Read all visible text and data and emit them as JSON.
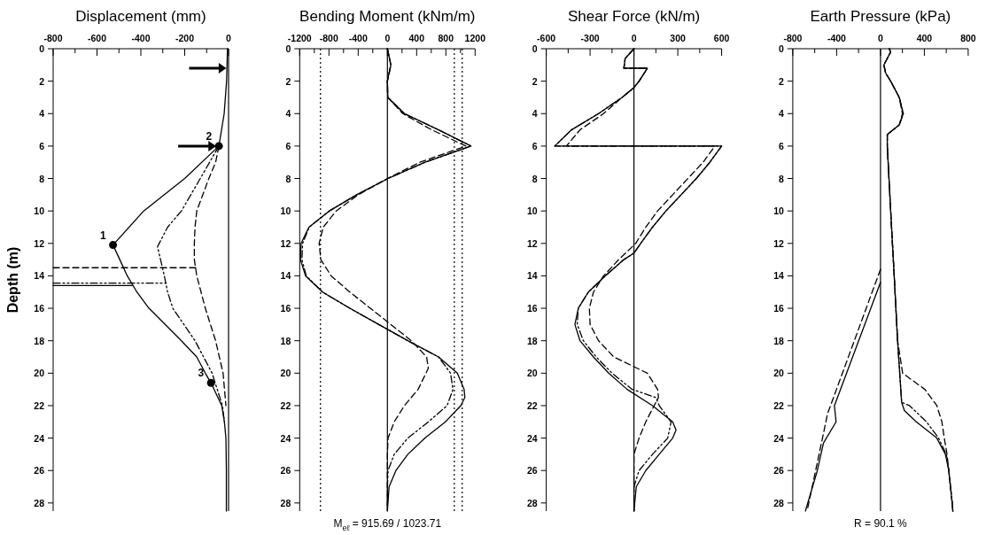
{
  "chart_data": [
    {
      "type": "line",
      "title": "Displacement (mm)",
      "ylabel": "Depth (m)",
      "xlim": [
        -800,
        0
      ],
      "xticks": [
        -800,
        {
          "value": -700,
          "label": null
        },
        -600,
        {
          "value": -500,
          "label": null
        },
        -400,
        {
          "value": -300,
          "label": null
        },
        -200,
        {
          "value": -100,
          "label": null
        },
        0
      ],
      "ylim": [
        28.5,
        0
      ],
      "yticks": [
        0,
        2,
        4,
        6,
        8,
        10,
        12,
        14,
        16,
        18,
        20,
        22,
        24,
        26,
        28
      ],
      "ref_lines": [
        {
          "axis": "x",
          "value": 0,
          "line_style": "solid",
          "color": "#000000"
        }
      ],
      "annotations": [
        {
          "text": "1",
          "x": -527,
          "y": 12.1
        },
        {
          "text": "2",
          "x": -44,
          "y": 6
        },
        {
          "text": "3",
          "x": -80,
          "y": 20.6
        }
      ],
      "series": [
        {
          "type": "line",
          "line_style": "solid",
          "color": "#000000",
          "x": [
            -5,
            -9,
            -20,
            -44,
            -200,
            -387,
            -527,
            -496,
            -462,
            -418,
            -363,
            -215,
            -145,
            -106,
            -80,
            -31,
            -19,
            -12,
            -10,
            -10
          ],
          "values": [
            0,
            2,
            4,
            6,
            8,
            10,
            12.1,
            13,
            14,
            15,
            16,
            18,
            19,
            20,
            20.6,
            22,
            23,
            24,
            26,
            28.5
          ]
        },
        {
          "type": "line",
          "line_style": "dashdot",
          "color": "#000000",
          "x": [
            -44,
            -129,
            -215,
            -278,
            -324,
            -293,
            -278,
            -254,
            -153,
            -75,
            -28,
            -19
          ],
          "values": [
            6,
            8,
            10,
            11,
            12.2,
            14,
            15,
            16,
            18,
            20,
            22,
            23
          ]
        },
        {
          "type": "line",
          "line_style": "dashed",
          "color": "#000000",
          "x": [
            -44,
            -59,
            -90,
            -145,
            -153,
            -156,
            -156,
            -145,
            -106,
            -59,
            -25,
            -12
          ],
          "values": [
            6,
            7,
            8,
            10,
            11,
            12,
            13,
            14,
            16,
            18,
            20,
            22
          ]
        },
        {
          "type": "line",
          "line_style": "dashed",
          "color": "#000000",
          "x": [
            -800,
            -150
          ],
          "values": [
            13.5,
            13.5
          ]
        },
        {
          "type": "line",
          "line_style": "solid",
          "color": "#000000",
          "x": [
            -800,
            -440
          ],
          "values": [
            14.6,
            14.6
          ]
        },
        {
          "type": "line",
          "line_style": "dashdot",
          "color": "#000000",
          "x": [
            -800,
            -285
          ],
          "values": [
            14.45,
            14.45
          ]
        },
        {
          "type": "scatter",
          "marker": "circle",
          "color": "#000000",
          "x": [
            -527,
            -44,
            -80
          ],
          "values": [
            12.1,
            6,
            20.6
          ]
        }
      ]
    },
    {
      "type": "line",
      "title": "Bending Moment (kNm/m)",
      "xlim": [
        -1200,
        1200
      ],
      "xticks": [
        -1200,
        {
          "value": -1000,
          "label": null
        },
        -800,
        {
          "value": -600,
          "label": null
        },
        -400,
        {
          "value": -200,
          "label": null
        },
        0,
        {
          "value": 200,
          "label": null
        },
        400,
        {
          "value": 600,
          "label": null
        },
        800,
        {
          "value": 1000,
          "label": null
        },
        1200
      ],
      "ylim": [
        28.5,
        0
      ],
      "yticks": [
        0,
        2,
        4,
        6,
        8,
        10,
        12,
        14,
        16,
        18,
        20,
        22,
        24,
        26,
        28
      ],
      "ref_lines": [
        {
          "axis": "x",
          "value": 0,
          "line_style": "solid",
          "color": "#000000"
        },
        {
          "axis": "x",
          "value": -915.69,
          "line_style": "dotted",
          "color": "#000000"
        },
        {
          "axis": "x",
          "value": 915.69,
          "line_style": "dotted",
          "color": "#000000"
        },
        {
          "axis": "x",
          "value": 1023.71,
          "line_style": "dotted",
          "color": "#000000"
        }
      ],
      "annotations": [
        "M$_{eℓ}$ = 915.69 / 1023.71"
      ],
      "series": [
        {
          "type": "line",
          "line_style": "solid",
          "color": "#000000",
          "x": [
            0,
            47,
            0,
            5,
            233,
            700,
            1144,
            514,
            9,
            -420,
            -794,
            -1074,
            -1181,
            -1190,
            -1120,
            -887,
            -514,
            -117,
            280,
            700,
            957,
            1050,
            1060,
            1004,
            794,
            514,
            280,
            117,
            23,
            0
          ],
          "values": [
            0,
            1,
            2,
            3,
            4,
            5,
            6,
            7,
            8,
            9,
            10,
            11,
            12,
            13,
            14,
            15,
            16,
            17,
            18,
            19,
            20,
            21,
            21.5,
            22,
            23,
            24,
            25,
            26,
            27,
            28.5
          ]
        },
        {
          "type": "line",
          "line_style": "dashdot",
          "color": "#000000",
          "x": [
            0,
            47,
            0,
            5,
            233,
            700,
            1144,
            514,
            9,
            -420,
            -794,
            -1070,
            -1160,
            -1170,
            -1110,
            -887,
            -514,
            -117,
            280,
            700,
            864,
            897,
            817,
            560,
            280,
            93,
            9,
            0,
            0
          ],
          "values": [
            0,
            1,
            2,
            3,
            4,
            5,
            6,
            7,
            8,
            9,
            10,
            11,
            12,
            13,
            14,
            15,
            16,
            17,
            18,
            19,
            20,
            21,
            22,
            23,
            24,
            25,
            26,
            27,
            28.5
          ]
        },
        {
          "type": "line",
          "line_style": "dashed",
          "color": "#000000",
          "x": [
            0,
            47,
            0,
            5,
            210,
            607,
            1074,
            444,
            0,
            -397,
            -700,
            -878,
            -934,
            -911,
            -770,
            -514,
            -233,
            47,
            327,
            537,
            560,
            420,
            233,
            93,
            9,
            0,
            0
          ],
          "values": [
            0,
            1,
            2,
            3,
            4,
            5,
            6,
            7,
            8,
            9,
            10,
            11,
            12,
            13,
            14,
            15,
            16,
            17,
            18,
            19,
            19.7,
            21,
            22,
            23,
            24,
            25,
            28.5
          ]
        }
      ]
    },
    {
      "type": "line",
      "title": "Shear Force (kN/m)",
      "xlim": [
        -600,
        600
      ],
      "xticks": [
        -600,
        {
          "value": -450,
          "label": null
        },
        -300,
        {
          "value": -150,
          "label": null
        },
        0,
        {
          "value": 150,
          "label": null
        },
        300,
        {
          "value": 450,
          "label": null
        },
        600
      ],
      "ylim": [
        28.5,
        0
      ],
      "yticks": [
        0,
        2,
        4,
        6,
        8,
        10,
        12,
        14,
        16,
        18,
        20,
        22,
        24,
        26,
        28
      ],
      "ref_lines": [
        {
          "axis": "x",
          "value": 0,
          "line_style": "solid",
          "color": "#000000"
        }
      ],
      "series": [
        {
          "type": "line",
          "line_style": "solid",
          "color": "#000000",
          "x": [
            0,
            -60,
            -69,
            92,
            35,
            0,
            -81,
            -242,
            -427,
            -542,
            600,
            519,
            427,
            323,
            219,
            127,
            46,
            0,
            -69,
            -196,
            -312,
            -381,
            -404,
            -369,
            -277,
            -173,
            -46,
            127,
            265,
            288,
            265,
            173,
            81,
            16,
            0
          ],
          "values": [
            0,
            0.6,
            1.2,
            1.2,
            2,
            2.4,
            3,
            4,
            5,
            6,
            6,
            7,
            8,
            9,
            10,
            11,
            12,
            12.6,
            13,
            14,
            15,
            16,
            17,
            18,
            19,
            20,
            21,
            22,
            23,
            23.5,
            24,
            25,
            26,
            27,
            28.5
          ]
        },
        {
          "type": "line",
          "line_style": "dashdot",
          "color": "#000000",
          "x": [
            0,
            -60,
            -69,
            92,
            35,
            0,
            -81,
            -242,
            -427,
            -542,
            600,
            519,
            427,
            323,
            219,
            127,
            46,
            0,
            -69,
            -196,
            -312,
            -381,
            -388,
            -346,
            -258,
            -150,
            -12,
            150,
            173,
            254,
            231,
            127,
            35,
            0,
            0
          ],
          "values": [
            0,
            0.6,
            1.2,
            1.2,
            2,
            2.4,
            3,
            4,
            5,
            6,
            6,
            7,
            8,
            9,
            10,
            11,
            12,
            12.6,
            13,
            14,
            15,
            16,
            17,
            18,
            19,
            20,
            21,
            21.5,
            22,
            23,
            24,
            25,
            26,
            27,
            28.5
          ]
        },
        {
          "type": "line",
          "line_style": "dashed",
          "color": "#000000",
          "x": [
            0,
            -60,
            -69,
            92,
            35,
            0,
            -81,
            -208,
            -369,
            -462,
            554,
            473,
            369,
            265,
            162,
            81,
            12,
            -104,
            -208,
            -277,
            -305,
            -300,
            -242,
            -138,
            0,
            92,
            162,
            168,
            138,
            81,
            35,
            0,
            0
          ],
          "values": [
            0,
            0.6,
            1.2,
            1.2,
            2,
            2.4,
            3,
            4,
            5,
            6,
            6,
            7,
            8,
            9,
            10,
            11,
            12,
            13,
            14,
            15,
            16,
            17,
            18,
            19,
            19.6,
            20,
            21,
            21.5,
            22,
            23,
            24,
            25,
            28.5
          ]
        }
      ]
    },
    {
      "type": "line",
      "title": "Earth Pressure (kPa)",
      "xlim": [
        -800,
        800
      ],
      "xticks": [
        -800,
        {
          "value": -600,
          "label": null
        },
        -400,
        {
          "value": -200,
          "label": null
        },
        0,
        {
          "value": 200,
          "label": null
        },
        400,
        {
          "value": 600,
          "label": null
        },
        800
      ],
      "ylim": [
        28.5,
        0
      ],
      "yticks": [
        0,
        2,
        4,
        6,
        8,
        10,
        12,
        14,
        16,
        18,
        20,
        22,
        24,
        26,
        28
      ],
      "ref_lines": [
        {
          "axis": "x",
          "value": 0,
          "line_style": "solid",
          "color": "#000000"
        }
      ],
      "annotations": [
        "R = 90.1 %"
      ],
      "series": [
        {
          "type": "line",
          "line_style": "solid",
          "color": "#000000",
          "x": [
            80,
            93,
            31,
            47,
            93,
            171,
            208,
            171,
            78,
            62,
            62,
            93,
            125,
            156,
            193,
            218,
            327,
            514,
            592,
            623,
            654,
            660
          ],
          "values": [
            0,
            0.2,
            1,
            1.5,
            2,
            3,
            4,
            4.7,
            5.2,
            5.3,
            6,
            10,
            14,
            18,
            21.8,
            22.3,
            23,
            24,
            25,
            26,
            28,
            28.5
          ]
        },
        {
          "type": "line",
          "line_style": "dashdot",
          "color": "#000000",
          "x": [
            80,
            93,
            31,
            47,
            93,
            171,
            208,
            171,
            78,
            62,
            62,
            93,
            125,
            156,
            193,
            265,
            420,
            530,
            600,
            623,
            654,
            660
          ],
          "values": [
            0,
            0.2,
            1,
            1.5,
            2,
            3,
            4,
            4.7,
            5.2,
            5.3,
            6,
            10,
            14,
            18,
            21.8,
            22,
            23,
            24,
            25,
            26,
            28,
            28.5
          ]
        },
        {
          "type": "line",
          "line_style": "dashed",
          "color": "#000000",
          "x": [
            80,
            93,
            31,
            47,
            93,
            171,
            200,
            171,
            78,
            62,
            62,
            93,
            125,
            156,
            202,
            405,
            514,
            560,
            582,
            607,
            623,
            654,
            660
          ],
          "values": [
            0,
            0.2,
            1,
            1.5,
            2,
            3,
            4,
            4.7,
            5.2,
            5.3,
            6,
            10,
            14,
            18,
            20,
            21,
            22,
            23,
            24,
            25,
            26,
            28,
            28.5
          ]
        },
        {
          "type": "line",
          "line_style": "solid",
          "color": "#000000",
          "x": [
            0,
            -420,
            -405,
            -520,
            -576,
            -685
          ],
          "values": [
            14.4,
            22,
            23,
            24.3,
            26,
            28.5
          ]
        },
        {
          "type": "line",
          "line_style": "dashed",
          "color": "#000000",
          "x": [
            0,
            -483,
            -529,
            -670
          ],
          "values": [
            13.6,
            22.5,
            24,
            28.5
          ]
        }
      ]
    }
  ]
}
